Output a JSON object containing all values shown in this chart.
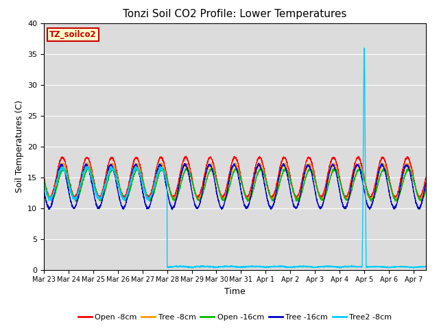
{
  "title": "Tonzi Soil CO2 Profile: Lower Temperatures",
  "ylabel": "Soil Temperatures (C)",
  "xlabel": "Time",
  "ylim": [
    0,
    40
  ],
  "yticks": [
    0,
    5,
    10,
    15,
    20,
    25,
    30,
    35,
    40
  ],
  "bg_color": "#dcdcdc",
  "annotation_text": "TZ_soilco2",
  "annotation_bg": "#ffffcc",
  "annotation_edge": "#cc0000",
  "annotation_text_color": "#cc0000",
  "series": {
    "open_8cm": {
      "label": "Open -8cm",
      "color": "#ff0000"
    },
    "tree_8cm": {
      "label": "Tree -8cm",
      "color": "#ff9900"
    },
    "open_16cm": {
      "label": "Open -16cm",
      "color": "#00bb00"
    },
    "tree_16cm": {
      "label": "Tree -16cm",
      "color": "#0000cc"
    },
    "tree2_8cm": {
      "label": "Tree2 -8cm",
      "color": "#00ccff"
    }
  }
}
